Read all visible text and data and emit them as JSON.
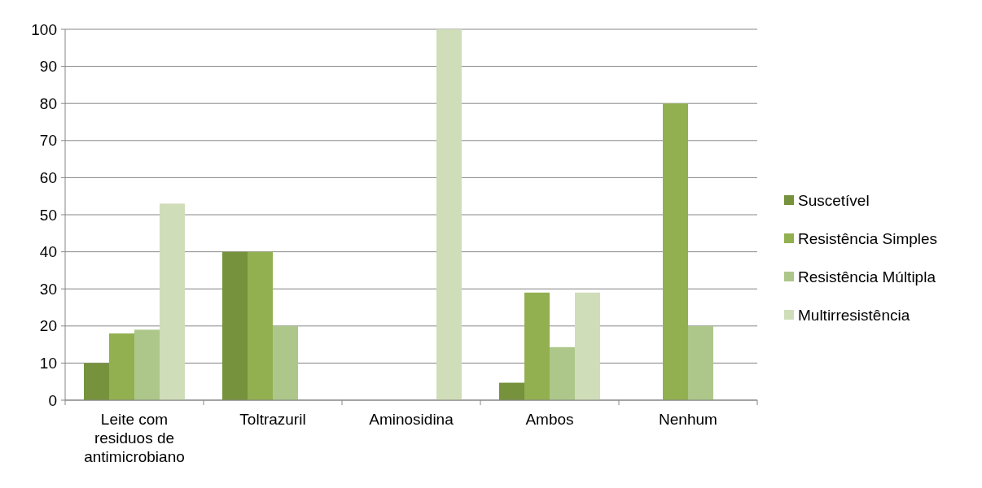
{
  "chart_data": {
    "type": "bar",
    "categories": [
      "Leite com residuos de antimicrobiano",
      "Toltrazuril",
      "Aminosidina",
      "Ambos",
      "Nenhum"
    ],
    "series": [
      {
        "name": "Suscetível",
        "color": "#76923c",
        "values": [
          10,
          40,
          0,
          4.7,
          0
        ]
      },
      {
        "name": "Resistência Simples",
        "color": "#92b050",
        "values": [
          18,
          40,
          0,
          29,
          80
        ]
      },
      {
        "name": "Resistência Múltipla",
        "color": "#adc78a",
        "values": [
          19,
          20,
          0,
          14.3,
          20
        ]
      },
      {
        "name": "Multirresistência",
        "color": "#d0ddb9",
        "values": [
          53,
          0,
          100,
          29,
          0
        ]
      }
    ],
    "ylim": [
      0,
      100
    ],
    "yticks": [
      0,
      10,
      20,
      30,
      40,
      50,
      60,
      70,
      80,
      90,
      100
    ],
    "grid": "y",
    "legend": "right"
  }
}
